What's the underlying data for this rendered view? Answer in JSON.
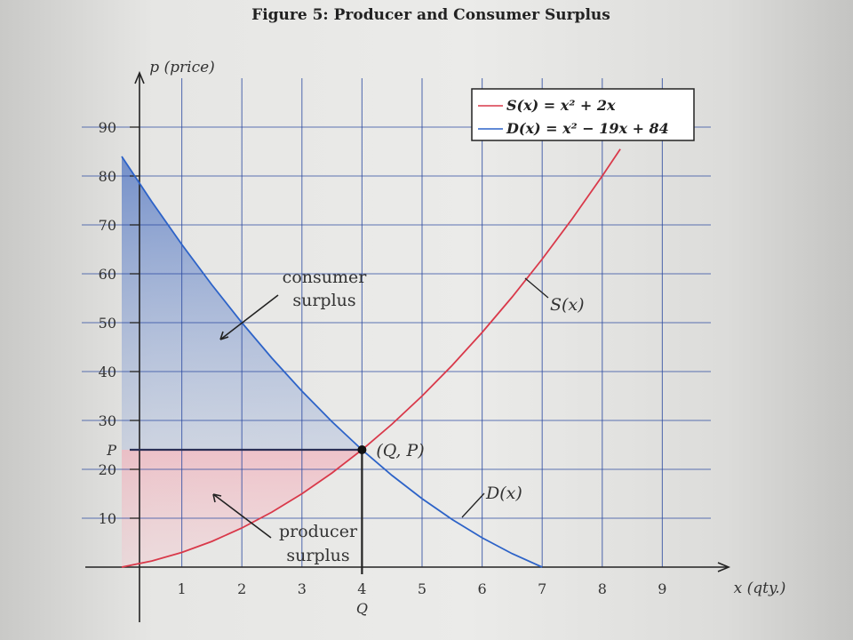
{
  "chart_data": {
    "type": "line",
    "title": "Figure 5: Producer and Consumer Surplus",
    "xlabel": "x (qty.)",
    "ylabel": "p (price)",
    "xlim": [
      0,
      10
    ],
    "ylim": [
      0,
      100
    ],
    "x_ticks": [
      1,
      2,
      3,
      4,
      5,
      6,
      7,
      8,
      9
    ],
    "y_ticks": [
      10,
      20,
      30,
      40,
      50,
      60,
      70,
      80,
      90
    ],
    "grid": true,
    "legend_position": "top-right",
    "series": [
      {
        "name": "S(x) = x² + 2x",
        "color": "#d9394a",
        "x": [
          0,
          0.5,
          1,
          1.5,
          2,
          2.5,
          3,
          3.5,
          4,
          4.5,
          5,
          5.5,
          6,
          6.5,
          7,
          7.5,
          8,
          8.3
        ],
        "y": [
          0,
          1.25,
          3,
          5.25,
          8,
          11.25,
          15,
          19.25,
          24,
          29.25,
          35,
          41.25,
          48,
          55.25,
          63,
          71.25,
          80,
          85.49
        ]
      },
      {
        "name": "D(x) = x² − 19x + 84",
        "color": "#2d63c8",
        "x": [
          0,
          0.5,
          1,
          1.5,
          2,
          2.5,
          3,
          3.5,
          4,
          4.5,
          5,
          5.5,
          6,
          6.5,
          7
        ],
        "y": [
          84,
          74.75,
          66,
          57.75,
          50,
          42.75,
          36,
          29.75,
          24,
          18.75,
          14,
          9.75,
          6,
          2.75,
          0
        ]
      }
    ],
    "equilibrium": {
      "x": 4,
      "y": 24,
      "label": "(Q, P)"
    },
    "special_ticks": {
      "x": "Q",
      "y": "P"
    },
    "annotations": [
      {
        "text": [
          "consumer",
          "surplus"
        ]
      },
      {
        "text": [
          "producer",
          "surplus"
        ]
      },
      {
        "text": "S(x)"
      },
      {
        "text": "D(x)"
      }
    ],
    "shaded_regions": [
      {
        "name": "consumer surplus",
        "color": "#5b7fc8"
      },
      {
        "name": "producer surplus",
        "color": "#f2a3b1"
      }
    ]
  }
}
